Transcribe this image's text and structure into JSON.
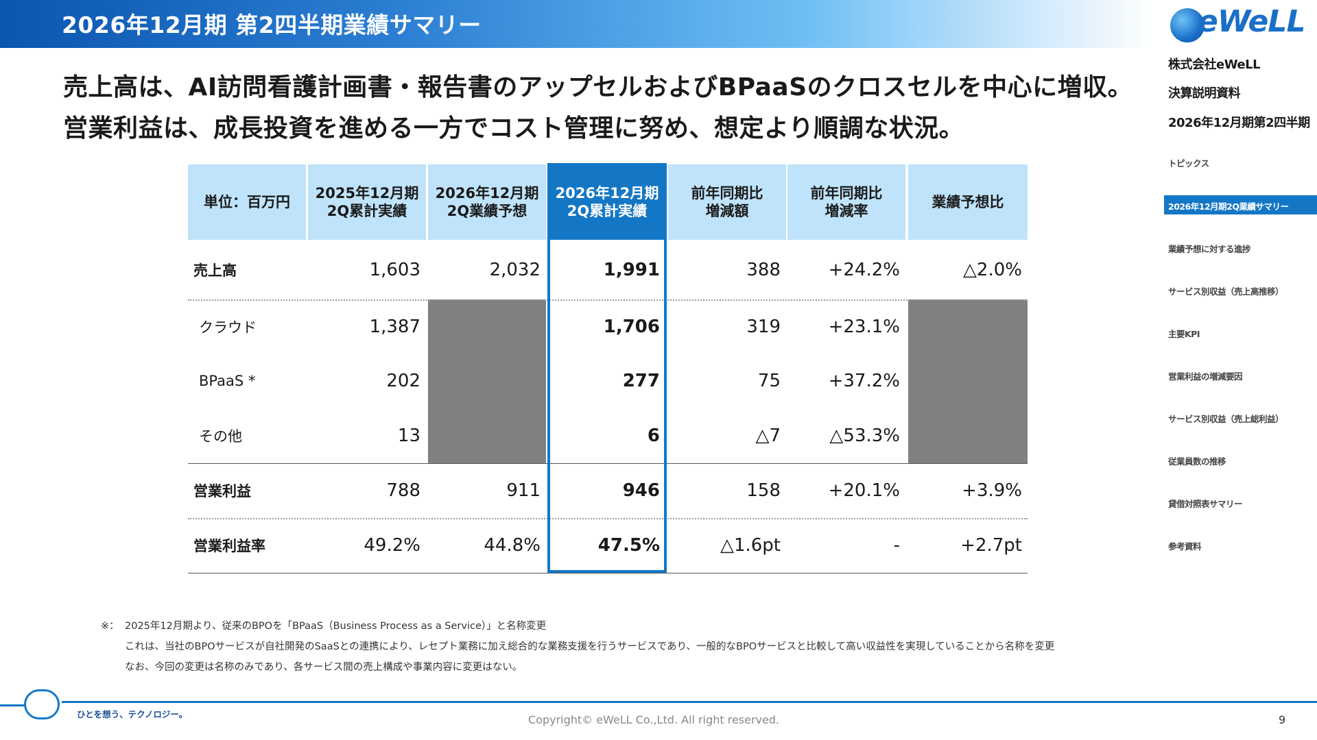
{
  "header": {
    "title": "2026年12月期 第2四半期業績サマリー"
  },
  "headline": [
    "売上高は、AI訪問看護計画書・報告書のアップセルおよびBPaaSのクロスセルを中心に増収。",
    "営業利益は、成長投資を進める一方でコスト管理に努め、想定より順調な状況。"
  ],
  "table": {
    "columns": [
      "単位：百万円",
      "2025年12月期\n2Q累計実績",
      "2026年12月期\n2Q業績予想",
      "2026年12月期\n2Q累計実績",
      "前年同期比\n増減額",
      "前年同期比\n増減率",
      "業績予想比"
    ],
    "highlight_column": 3,
    "rows": [
      {
        "label": "売上高",
        "bold": true,
        "values": [
          "1,603",
          "2,032",
          "1,991",
          "388",
          "+24.2%",
          "△2.0%"
        ]
      },
      {
        "label": "クラウド",
        "bold": false,
        "values": [
          "1,387",
          "",
          "1,706",
          "319",
          "+23.1%",
          ""
        ]
      },
      {
        "label": "BPaaS *",
        "bold": false,
        "values": [
          "202",
          "",
          "277",
          "75",
          "+37.2%",
          ""
        ]
      },
      {
        "label": "その他",
        "bold": false,
        "values": [
          "13",
          "",
          "6",
          "△7",
          "△53.3%",
          ""
        ]
      },
      {
        "label": "営業利益",
        "bold": true,
        "values": [
          "788",
          "911",
          "946",
          "158",
          "+20.1%",
          "+3.9%"
        ]
      },
      {
        "label": "営業利益率",
        "bold": true,
        "values": [
          "49.2%",
          "44.8%",
          "47.5%",
          "△1.6pt",
          "-",
          "+2.7pt"
        ]
      }
    ]
  },
  "footnote": {
    "marker": "※：",
    "lines": [
      "2025年12月期より、従来のBPOを「BPaaS（Business Process as a Service）」と名称変更",
      "これは、当社のBPOサービスが自社開発のSaaSとの連携により、レセプト業務に加え総合的な業務支援を行うサービスであり、一般的なBPOサービスと比較して高い収益性を実現していることから名称を変更",
      "なお、今回の変更は名称のみであり、各サービス間の売上構成や事業内容に変更はない。"
    ]
  },
  "sidebar": {
    "logo_text": "eWeLL",
    "company": "株式会社eWeLL",
    "doc_type": "決算説明資料",
    "period": "2026年12月期第2四半期",
    "nav": [
      "トピックス",
      "2026年12月期2Q業績サマリー",
      "業績予想に対する進捗",
      "サービス別収益（売上高推移）",
      "主要KPI",
      "営業利益の増減要因",
      "サービス別収益（売上総利益）",
      "従業員数の推移",
      "貸借対照表サマリー",
      "参考資料"
    ],
    "active_index": 1
  },
  "footer": {
    "slogan": "ひとを想う、テクノロジー。",
    "copyright": "Copyright© eWeLL Co.,Ltd. All right reserved.",
    "page": "9"
  },
  "colors": {
    "accent": "#1477c6",
    "header_cell": "#bfe3fa",
    "gray_cell": "#808080"
  }
}
